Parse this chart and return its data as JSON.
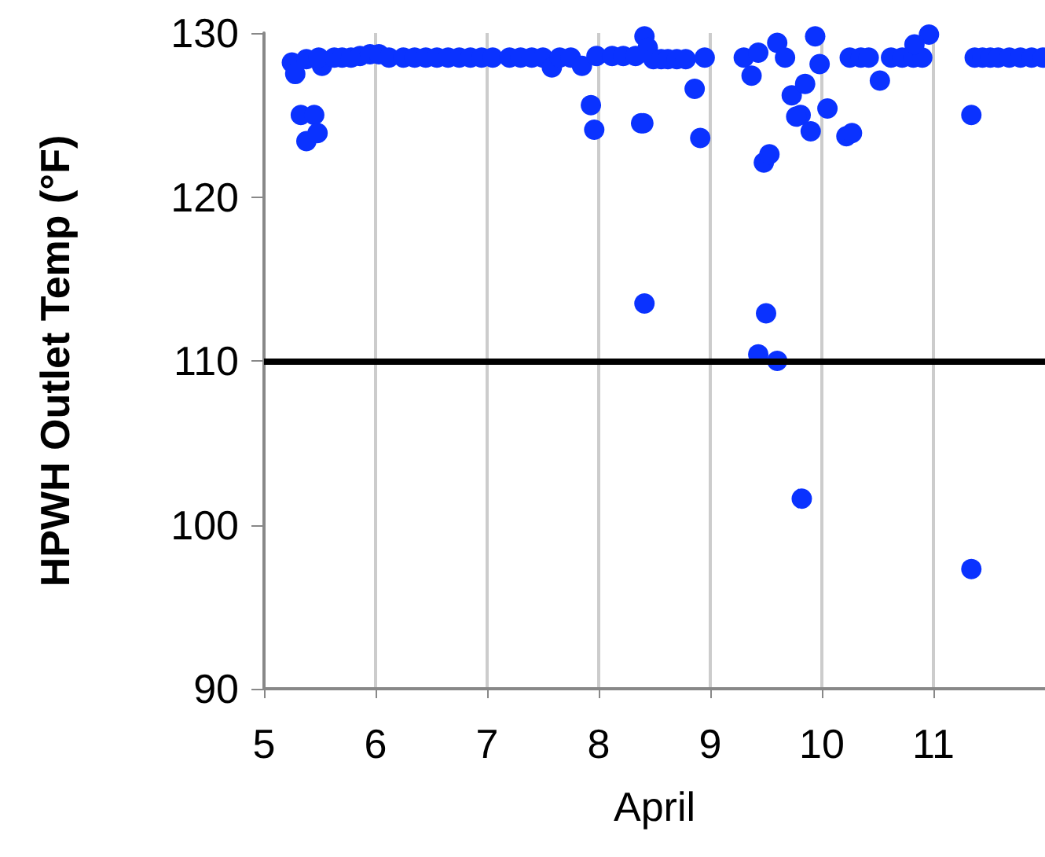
{
  "chart_data": {
    "type": "scatter",
    "xlabel": "April",
    "ylabel": "HPWH Outlet Temp (°F)",
    "x": [
      5.25,
      5.28,
      5.33,
      5.38,
      5.45,
      5.48,
      5.38,
      5.52,
      5.49,
      5.63,
      5.7,
      5.78,
      5.86,
      5.95,
      6.03,
      6.12,
      6.25,
      6.35,
      6.45,
      6.55,
      6.65,
      6.75,
      6.85,
      6.95,
      7.05,
      7.2,
      7.3,
      7.4,
      7.5,
      7.58,
      7.65,
      7.75,
      7.85,
      7.93,
      7.96,
      7.98,
      8.12,
      8.22,
      8.33,
      8.38,
      8.41,
      8.44,
      8.49,
      8.56,
      8.62,
      8.7,
      8.78,
      8.86,
      8.91,
      8.95,
      8.4,
      9.3,
      9.37,
      9.43,
      9.48,
      9.53,
      9.6,
      9.67,
      9.73,
      9.81,
      9.77,
      9.9,
      9.94,
      9.98,
      9.85,
      10.05,
      10.22,
      10.27,
      10.25,
      10.35,
      10.42,
      10.52,
      10.62,
      10.72,
      10.82,
      10.9,
      10.96,
      10.83,
      11.37,
      11.44,
      11.51,
      11.58,
      11.68,
      11.78,
      11.88,
      11.98,
      11.34,
      8.41,
      9.5,
      9.43,
      9.6,
      9.82,
      11.34
    ],
    "values": [
      128.2,
      127.5,
      125.0,
      123.4,
      125.0,
      123.9,
      128.4,
      128.0,
      128.5,
      128.5,
      128.5,
      128.5,
      128.6,
      128.7,
      128.7,
      128.5,
      128.5,
      128.5,
      128.5,
      128.5,
      128.5,
      128.5,
      128.5,
      128.5,
      128.5,
      128.5,
      128.5,
      128.5,
      128.5,
      127.9,
      128.5,
      128.5,
      128.0,
      125.6,
      124.1,
      128.6,
      128.6,
      128.6,
      128.6,
      124.5,
      129.8,
      129.1,
      128.4,
      128.4,
      128.4,
      128.4,
      128.4,
      126.6,
      123.6,
      128.5,
      124.5,
      128.5,
      127.4,
      128.8,
      122.1,
      122.6,
      129.4,
      128.5,
      126.2,
      125.0,
      124.9,
      124.0,
      129.8,
      128.1,
      126.9,
      125.4,
      123.7,
      123.9,
      128.5,
      128.5,
      128.5,
      127.1,
      128.5,
      128.5,
      128.5,
      128.5,
      129.9,
      129.3,
      128.5,
      128.5,
      128.5,
      128.5,
      128.5,
      128.5,
      128.5,
      128.5,
      125.0,
      113.5,
      112.9,
      110.4,
      110.0,
      101.6,
      97.3
    ],
    "color": "#0a32ff",
    "marker": "circle",
    "xlim": [
      5,
      12
    ],
    "xticks": [
      5,
      6,
      7,
      8,
      9,
      10,
      11
    ],
    "ylim": [
      90,
      130
    ],
    "yticks": [
      90,
      100,
      110,
      120,
      130
    ],
    "grid": "x",
    "ref_lines": [
      {
        "axis": "y",
        "value": 110,
        "color": "#000000",
        "line_style": "solid"
      }
    ]
  }
}
